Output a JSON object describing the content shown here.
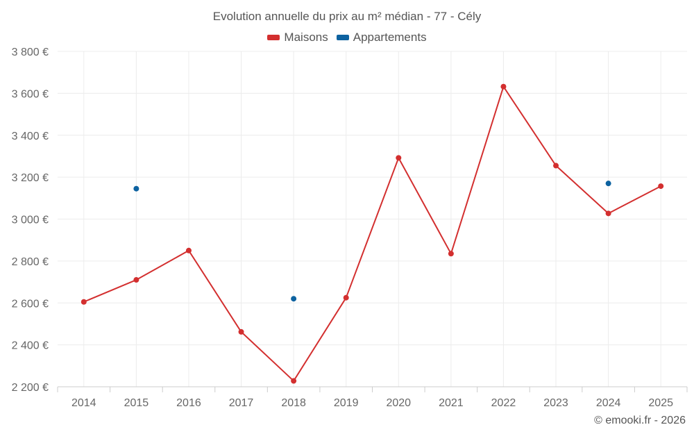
{
  "chart_data": {
    "type": "line",
    "title": "Evolution annuelle du prix au m² médian - 77 - Cély",
    "categories": [
      "2014",
      "2015",
      "2016",
      "2017",
      "2018",
      "2019",
      "2020",
      "2021",
      "2022",
      "2023",
      "2024",
      "2025"
    ],
    "ylim": [
      2200,
      3800
    ],
    "yticks": [
      2200,
      2400,
      2600,
      2800,
      3000,
      3200,
      3400,
      3600,
      3800
    ],
    "ytick_labels": [
      "2 200 €",
      "2 400 €",
      "2 600 €",
      "2 800 €",
      "3 000 €",
      "3 200 €",
      "3 400 €",
      "3 600 €",
      "3 800 €"
    ],
    "grid": true,
    "legend_position": "top-center",
    "series": [
      {
        "name": "Maisons",
        "color": "#d32f2f",
        "values": [
          2605,
          2710,
          2850,
          2462,
          2228,
          2625,
          3292,
          2835,
          3632,
          3255,
          3027,
          3157
        ]
      },
      {
        "name": "Appartements",
        "color": "#0d62a0",
        "values": [
          null,
          3145,
          null,
          null,
          2620,
          null,
          null,
          null,
          null,
          null,
          3170,
          null
        ]
      }
    ]
  },
  "footer": "© emooki.fr - 2026"
}
